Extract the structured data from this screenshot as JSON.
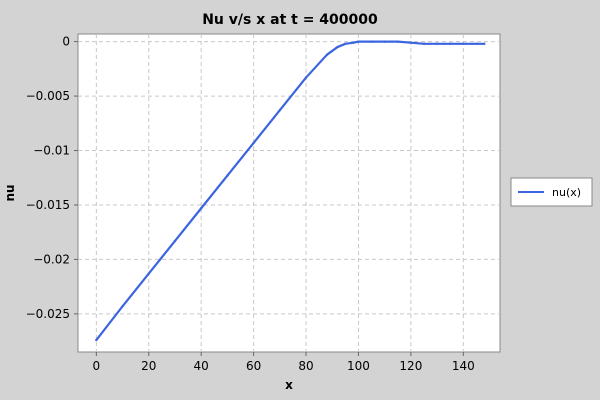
{
  "chart_data": {
    "type": "line",
    "title": "Nu v/s x at t = 400000",
    "xlabel": "x",
    "ylabel": "nu",
    "xlim": [
      -7,
      154
    ],
    "ylim": [
      -0.0285,
      0.0007
    ],
    "grid": true,
    "legend_placement": "right",
    "x_ticks": [
      0,
      20,
      40,
      60,
      80,
      100,
      120,
      140
    ],
    "x_tick_labels": [
      "0",
      "20",
      "40",
      "60",
      "80",
      "100",
      "120",
      "140"
    ],
    "y_ticks": [
      0,
      -0.005,
      -0.01,
      -0.015,
      -0.02,
      -0.025
    ],
    "y_tick_labels": [
      "0",
      "−0.005",
      "−0.01",
      "−0.015",
      "−0.02",
      "−0.025"
    ],
    "series": [
      {
        "name": "nu(x)",
        "color": "#3a64e0",
        "x": [
          0,
          10,
          20,
          30,
          40,
          50,
          60,
          70,
          80,
          88,
          92,
          95,
          98,
          100,
          105,
          110,
          115,
          120,
          125,
          130,
          135,
          140,
          145,
          148
        ],
        "y": [
          -0.0274,
          -0.0243,
          -0.0213,
          -0.0183,
          -0.0153,
          -0.0123,
          -0.0093,
          -0.0063,
          -0.0033,
          -0.0012,
          -0.0005,
          -0.0002,
          -0.0001,
          0,
          0,
          0,
          0,
          -0.0001,
          -0.0002,
          -0.0002,
          -0.0002,
          -0.0002,
          -0.0002,
          -0.0002
        ]
      }
    ]
  }
}
